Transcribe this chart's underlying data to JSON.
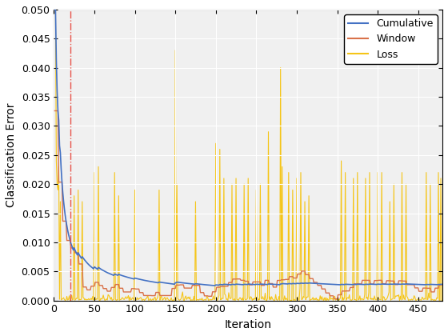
{
  "title": "",
  "xlabel": "Iteration",
  "ylabel": "Classification Error",
  "xlim": [
    0,
    480
  ],
  "ylim": [
    0,
    0.05
  ],
  "xticks": [
    0,
    50,
    100,
    150,
    200,
    250,
    300,
    350,
    400,
    450
  ],
  "yticks": [
    0,
    0.005,
    0.01,
    0.015,
    0.02,
    0.025,
    0.03,
    0.035,
    0.04,
    0.045,
    0.05
  ],
  "vline_x": 20,
  "vline_color": "#e8534a",
  "vline_style": "-.",
  "cumulative_color": "#4472c4",
  "window_color": "#d9724a",
  "loss_color": "#f5c518",
  "legend_labels": [
    "Cumulative",
    "Window",
    "Loss"
  ],
  "figsize": [
    5.6,
    4.2
  ],
  "dpi": 100
}
